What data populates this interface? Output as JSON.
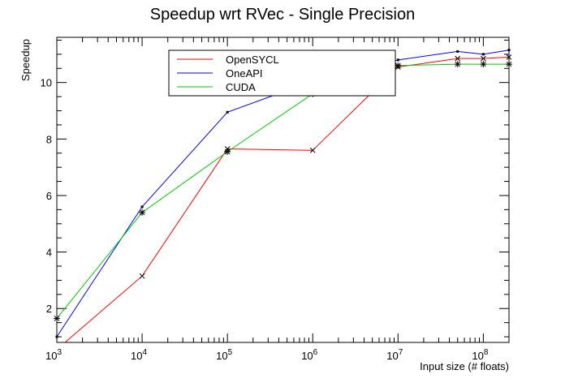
{
  "chart_data": {
    "type": "line",
    "title": "Speedup wrt RVec - Single Precision",
    "xlabel": "Input size (# floats)",
    "ylabel": "Speedup",
    "xscale": "log",
    "xlim": [
      1000,
      200000000
    ],
    "ylim": [
      0.8,
      11.6
    ],
    "grid": false,
    "legend_position": "top-center",
    "x_ticks": [
      {
        "value": 1000,
        "base": "10",
        "exp": "3"
      },
      {
        "value": 10000,
        "base": "10",
        "exp": "4"
      },
      {
        "value": 100000,
        "base": "10",
        "exp": "5"
      },
      {
        "value": 1000000,
        "base": "10",
        "exp": "6"
      },
      {
        "value": 10000000,
        "base": "10",
        "exp": "7"
      },
      {
        "value": 100000000,
        "base": "10",
        "exp": "8"
      }
    ],
    "y_ticks": [
      2,
      4,
      6,
      8,
      10
    ],
    "series": [
      {
        "name": "OpenSYCL",
        "color": "#ff0000",
        "marker": "x",
        "x": [
          1000,
          10000,
          100000,
          1000000,
          10000000,
          50000000,
          100000000,
          200000000
        ],
        "y": [
          0.55,
          3.15,
          7.65,
          7.6,
          10.55,
          10.85,
          10.85,
          10.9
        ]
      },
      {
        "name": "OneAPI",
        "color": "#0000ff",
        "marker": "dot",
        "x": [
          1000,
          10000,
          100000,
          1000000,
          10000000,
          50000000,
          100000000,
          200000000
        ],
        "y": [
          1.0,
          5.6,
          8.95,
          10.05,
          10.8,
          11.1,
          11.0,
          11.15
        ]
      },
      {
        "name": "CUDA",
        "color": "#00cc00",
        "marker": "star",
        "x": [
          1000,
          10000,
          100000,
          1000000,
          10000000,
          50000000,
          100000000,
          200000000
        ],
        "y": [
          1.65,
          5.4,
          7.55,
          9.6,
          10.6,
          10.65,
          10.65,
          10.65
        ]
      }
    ]
  }
}
